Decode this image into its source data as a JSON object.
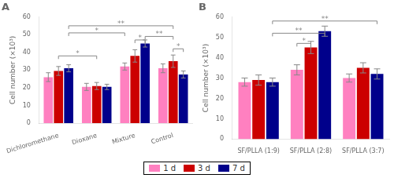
{
  "chart_data": [
    {
      "type": "bar",
      "title": "A",
      "ylabel": "Cell number (×10³)",
      "categories": [
        "Dichloromethane",
        "Dioxane",
        "Mixture",
        "Control"
      ],
      "series": [
        {
          "name": "1 d",
          "color": "#FF80C0",
          "values": [
            26,
            20.5,
            32,
            31
          ],
          "errors": [
            2.5,
            2.0,
            2.0,
            2.5
          ]
        },
        {
          "name": "3 d",
          "color": "#CC0000",
          "values": [
            29.5,
            21,
            38,
            35
          ],
          "errors": [
            2.5,
            2.0,
            3.5,
            3.5
          ]
        },
        {
          "name": "7 d",
          "color": "#00008B",
          "values": [
            31,
            20.5,
            45,
            27.5
          ],
          "errors": [
            2.0,
            1.5,
            2.0,
            2.0
          ]
        }
      ],
      "ylim": [
        0,
        60
      ],
      "yticks": [
        0,
        10,
        20,
        30,
        40,
        50,
        60
      ],
      "grid": false,
      "legend": "bottom",
      "annotations": [
        {
          "text": "*",
          "from": {
            "category": "Dichloromethane",
            "series": "3 d"
          },
          "to": {
            "category": "Dioxane",
            "series": "3 d"
          },
          "y": 38,
          "color": "#888888"
        },
        {
          "text": "*",
          "from": {
            "category": "Mixture",
            "series": "3 d"
          },
          "to": {
            "category": "Mixture",
            "series": "7 d"
          },
          "y": 47,
          "color": "#888888"
        },
        {
          "text": "*",
          "from": {
            "category": "Dichloromethane",
            "series": "7 d"
          },
          "to": {
            "category": "Mixture",
            "series": "1 d"
          },
          "y": 51,
          "color": "#888888"
        },
        {
          "text": "**",
          "from": {
            "category": "Mixture",
            "series": "7 d"
          },
          "to": {
            "category": "Control",
            "series": "3 d"
          },
          "y": 49,
          "color": "#888888"
        },
        {
          "text": "**",
          "from": {
            "category": "Dichloromethane",
            "series": "7 d"
          },
          "to": {
            "category": "Control",
            "series": "3 d"
          },
          "y": 55,
          "color": "#888888"
        },
        {
          "text": "*",
          "from": {
            "category": "Control",
            "series": "3 d"
          },
          "to": {
            "category": "Control",
            "series": "7 d"
          },
          "y": 42,
          "color": "#888888"
        }
      ]
    },
    {
      "type": "bar",
      "title": "B",
      "ylabel": "Cell number (×10³)",
      "categories": [
        "SF/PLLA (1:9)",
        "SF/PLLA (2:8)",
        "SF/PLLA (3:7)"
      ],
      "series": [
        {
          "name": "1 d",
          "color": "#FF80C0",
          "values": [
            28,
            34,
            30
          ],
          "errors": [
            2.0,
            2.5,
            2.0
          ]
        },
        {
          "name": "3 d",
          "color": "#CC0000",
          "values": [
            29,
            45,
            35
          ],
          "errors": [
            2.5,
            3.0,
            2.5
          ]
        },
        {
          "name": "7 d",
          "color": "#00008B",
          "values": [
            28,
            53,
            32
          ],
          "errors": [
            2.0,
            2.5,
            2.5
          ]
        }
      ],
      "ylim": [
        0,
        60
      ],
      "yticks": [
        0,
        10,
        20,
        30,
        40,
        50,
        60
      ],
      "grid": false,
      "legend": "bottom",
      "annotations": [
        {
          "text": "*",
          "from": {
            "category": "SF/PLLA (2:8)",
            "series": "1 d"
          },
          "to": {
            "category": "SF/PLLA (2:8)",
            "series": "3 d"
          },
          "y": 47,
          "color": "#888888"
        },
        {
          "text": "**",
          "from": {
            "category": "SF/PLLA (1:9)",
            "series": "7 d"
          },
          "to": {
            "category": "SF/PLLA (2:8)",
            "series": "7 d"
          },
          "y": 52,
          "color": "#888888"
        },
        {
          "text": "**",
          "from": {
            "category": "SF/PLLA (1:9)",
            "series": "7 d"
          },
          "to": {
            "category": "SF/PLLA (3:7)",
            "series": "7 d"
          },
          "y": 58,
          "color": "#888888"
        }
      ]
    }
  ]
}
